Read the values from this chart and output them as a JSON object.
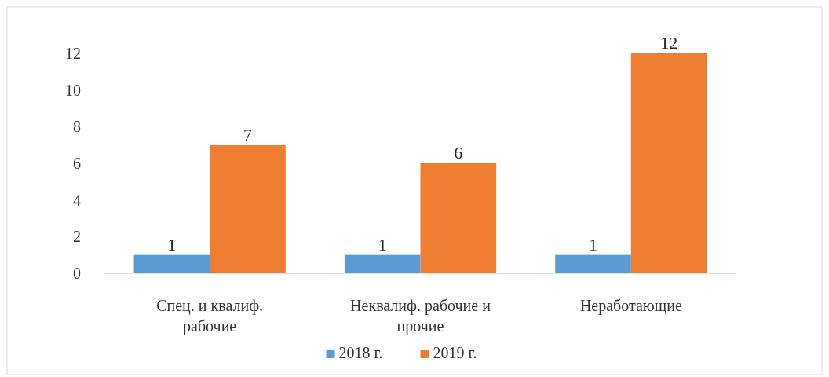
{
  "chart_data": {
    "type": "bar",
    "categories": [
      "Спец. и квалиф. рабочие",
      "Неквалиф. рабочие и прочие",
      "Неработающие"
    ],
    "series": [
      {
        "name": "2018 г.",
        "color": "#5b9bd5",
        "values": [
          1,
          1,
          1
        ]
      },
      {
        "name": "2019 г.",
        "color": "#ed7d31",
        "values": [
          7,
          6,
          12
        ]
      }
    ],
    "ylim": [
      0,
      12
    ],
    "yticks": [
      0,
      2,
      4,
      6,
      8,
      10,
      12
    ],
    "grid": false,
    "legend": "bottom",
    "data_labels": true
  }
}
